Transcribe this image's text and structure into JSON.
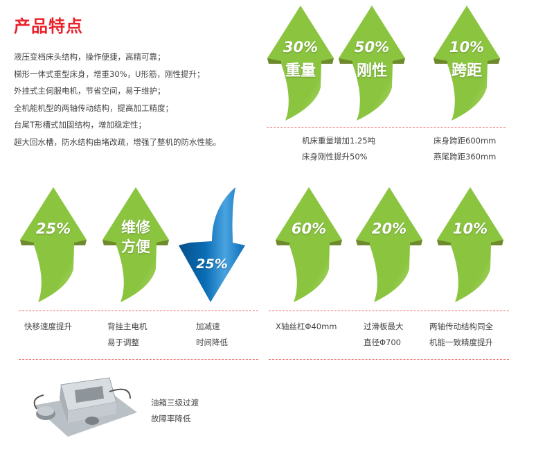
{
  "title": "产品特点",
  "features": [
    "液压变档床头结构，操作便捷，高精可靠；",
    "梯形一体式重型床身，增重30%，U形筋，刚性提升；",
    "外挂式主伺服电机，节省空间，易于维护；",
    "全机能机型的两轴传动结构，提高加工精度；",
    "台尾T形槽式加固结构，增加稳定性；",
    "超大回水槽，防水结构由堵改疏，增强了整机的防水性能。"
  ],
  "colors": {
    "title": "#e8222a",
    "arrow_green": "#8bc540",
    "arrow_blue": "#0a6db5",
    "dash": "#e66666"
  },
  "top_arrows": [
    {
      "value": "30%",
      "label": "重量",
      "direction": "up"
    },
    {
      "value": "50%",
      "label": "刚性",
      "direction": "up"
    },
    {
      "value": "10%",
      "label": "跨距",
      "direction": "up"
    }
  ],
  "top_captions": [
    {
      "lines": [
        "机床重量增加1.25吨",
        "床身刚性提升50%"
      ]
    },
    {
      "lines": [
        "床身跨距600mm",
        "燕尾跨距360mm"
      ]
    }
  ],
  "bottom_arrows": [
    {
      "value": "25%",
      "direction": "up"
    },
    {
      "value": "维修",
      "value2": "方便",
      "direction": "up"
    },
    {
      "value": "25%",
      "direction": "down"
    },
    {
      "value": "60%",
      "direction": "up"
    },
    {
      "value": "20%",
      "direction": "up"
    },
    {
      "value": "10%",
      "direction": "up"
    }
  ],
  "bottom_captions": [
    {
      "lines": [
        "快移速度提升"
      ]
    },
    {
      "lines": [
        "背挂主电机",
        "易于调整"
      ]
    },
    {
      "lines": [
        "加减速",
        "时间降低"
      ]
    },
    {
      "lines": [
        "X轴丝杠Φ40mm"
      ]
    },
    {
      "lines": [
        "过滑板最大",
        "直径Φ700"
      ]
    },
    {
      "lines": [
        "两轴传动结构同全",
        "机能一致精度提升"
      ]
    }
  ],
  "oil_tank": {
    "lines": [
      "油箱三级过渡",
      "故障率降低"
    ]
  }
}
